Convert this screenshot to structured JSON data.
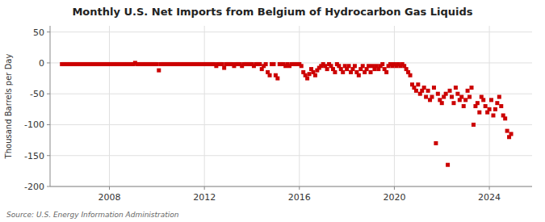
{
  "chart_data": {
    "type": "scatter",
    "title": "Monthly U.S. Net Imports from Belgium of Hydrocarbon Gas Liquids",
    "ylabel": "Thousand Barrels per Day",
    "annotations": [
      "Source: U.S. Energy Information Administration"
    ],
    "color": "#cc0000",
    "marker": "square",
    "grid": true,
    "xlim": [
      2005.5,
      2025.8
    ],
    "xticks": [
      2008,
      2012,
      2016,
      2020,
      2024
    ],
    "ylim": [
      -200,
      60
    ],
    "yticks": [
      -200,
      -150,
      -100,
      -50,
      0,
      50
    ],
    "x": [
      2006.0,
      2006.083,
      2006.167,
      2006.25,
      2006.333,
      2006.417,
      2006.5,
      2006.583,
      2006.667,
      2006.75,
      2006.833,
      2006.917,
      2007.0,
      2007.083,
      2007.167,
      2007.25,
      2007.333,
      2007.417,
      2007.5,
      2007.583,
      2007.667,
      2007.75,
      2007.833,
      2007.917,
      2008.0,
      2008.083,
      2008.167,
      2008.25,
      2008.333,
      2008.417,
      2008.5,
      2008.583,
      2008.667,
      2008.75,
      2008.833,
      2008.917,
      2009.0,
      2009.083,
      2009.167,
      2009.25,
      2009.333,
      2009.417,
      2009.5,
      2009.583,
      2009.667,
      2009.75,
      2009.833,
      2009.917,
      2010.0,
      2010.083,
      2010.167,
      2010.25,
      2010.333,
      2010.417,
      2010.5,
      2010.583,
      2010.667,
      2010.75,
      2010.833,
      2010.917,
      2011.0,
      2011.083,
      2011.167,
      2011.25,
      2011.333,
      2011.417,
      2011.5,
      2011.583,
      2011.667,
      2011.75,
      2011.833,
      2011.917,
      2012.0,
      2012.083,
      2012.167,
      2012.25,
      2012.333,
      2012.417,
      2012.5,
      2012.583,
      2012.667,
      2012.75,
      2012.833,
      2012.917,
      2013.0,
      2013.083,
      2013.167,
      2013.25,
      2013.333,
      2013.417,
      2013.5,
      2013.583,
      2013.667,
      2013.75,
      2013.833,
      2013.917,
      2014.0,
      2014.083,
      2014.167,
      2014.25,
      2014.333,
      2014.417,
      2014.5,
      2014.583,
      2014.667,
      2014.75,
      2014.833,
      2014.917,
      2015.0,
      2015.083,
      2015.167,
      2015.25,
      2015.333,
      2015.417,
      2015.5,
      2015.583,
      2015.667,
      2015.75,
      2015.833,
      2015.917,
      2016.0,
      2016.083,
      2016.167,
      2016.25,
      2016.333,
      2016.417,
      2016.5,
      2016.583,
      2016.667,
      2016.75,
      2016.833,
      2016.917,
      2017.0,
      2017.083,
      2017.167,
      2017.25,
      2017.333,
      2017.417,
      2017.5,
      2017.583,
      2017.667,
      2017.75,
      2017.833,
      2017.917,
      2018.0,
      2018.083,
      2018.167,
      2018.25,
      2018.333,
      2018.417,
      2018.5,
      2018.583,
      2018.667,
      2018.75,
      2018.833,
      2018.917,
      2019.0,
      2019.083,
      2019.167,
      2019.25,
      2019.333,
      2019.417,
      2019.5,
      2019.583,
      2019.667,
      2019.75,
      2019.833,
      2019.917,
      2020.0,
      2020.083,
      2020.167,
      2020.25,
      2020.333,
      2020.417,
      2020.5,
      2020.583,
      2020.667,
      2020.75,
      2020.833,
      2020.917,
      2021.0,
      2021.083,
      2021.167,
      2021.25,
      2021.333,
      2021.417,
      2021.5,
      2021.583,
      2021.667,
      2021.75,
      2021.833,
      2021.917,
      2022.0,
      2022.083,
      2022.167,
      2022.25,
      2022.333,
      2022.417,
      2022.5,
      2022.583,
      2022.667,
      2022.75,
      2022.833,
      2022.917,
      2023.0,
      2023.083,
      2023.167,
      2023.25,
      2023.333,
      2023.417,
      2023.5,
      2023.583,
      2023.667,
      2023.75,
      2023.833,
      2023.917,
      2024.0,
      2024.083,
      2024.167,
      2024.25,
      2024.333,
      2024.417,
      2024.5,
      2024.583,
      2024.667,
      2024.75,
      2024.833,
      2024.917
    ],
    "values": [
      -2,
      -2,
      -2,
      -2,
      -2,
      -2,
      -2,
      -2,
      -2,
      -2,
      -2,
      -2,
      -2,
      -2,
      -2,
      -2,
      -2,
      -2,
      -2,
      -2,
      -2,
      -2,
      -2,
      -2,
      -2,
      -2,
      -2,
      -2,
      -2,
      -2,
      -2,
      -2,
      -2,
      -2,
      -2,
      -2,
      -2,
      0,
      -2,
      -2,
      -2,
      -2,
      -2,
      -2,
      -2,
      -2,
      -2,
      -2,
      -2,
      -12,
      -2,
      -2,
      -2,
      -2,
      -2,
      -2,
      -2,
      -2,
      -2,
      -2,
      -2,
      -2,
      -2,
      -2,
      -2,
      -2,
      -2,
      -2,
      -2,
      -2,
      -2,
      -2,
      -2,
      -2,
      -2,
      -2,
      -2,
      -2,
      -5,
      -2,
      -2,
      -2,
      -8,
      -2,
      -2,
      -2,
      -2,
      -5,
      -2,
      -2,
      -2,
      -5,
      -2,
      -2,
      -2,
      -2,
      -2,
      -5,
      -2,
      -2,
      -2,
      -10,
      -5,
      -2,
      -15,
      -20,
      -2,
      -2,
      -20,
      -25,
      -2,
      -2,
      -2,
      -5,
      -2,
      -5,
      -2,
      -2,
      -2,
      -2,
      -2,
      -5,
      -15,
      -20,
      -25,
      -18,
      -10,
      -15,
      -20,
      -12,
      -8,
      -5,
      -2,
      -5,
      -10,
      -2,
      -5,
      -10,
      -15,
      -2,
      -5,
      -10,
      -15,
      -5,
      -10,
      -5,
      -15,
      -10,
      -5,
      -15,
      -20,
      -10,
      -5,
      -15,
      -10,
      -5,
      -15,
      -5,
      -10,
      -5,
      -10,
      -5,
      -2,
      -10,
      -15,
      -5,
      -2,
      -5,
      -2,
      -5,
      -2,
      -5,
      -2,
      -5,
      -10,
      -15,
      -20,
      -35,
      -40,
      -45,
      -35,
      -50,
      -45,
      -40,
      -55,
      -45,
      -60,
      -55,
      -40,
      -130,
      -50,
      -60,
      -65,
      -55,
      -50,
      -165,
      -45,
      -55,
      -65,
      -40,
      -50,
      -60,
      -55,
      -70,
      -60,
      -45,
      -55,
      -40,
      -100,
      -70,
      -65,
      -80,
      -55,
      -60,
      -70,
      -80,
      -75,
      -60,
      -85,
      -75,
      -65,
      -55,
      -70,
      -85,
      -90,
      -110,
      -120,
      -115
    ]
  }
}
